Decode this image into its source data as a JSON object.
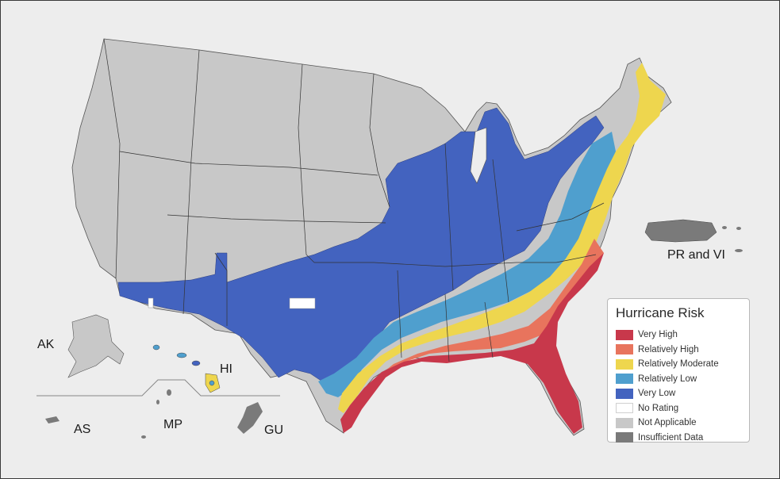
{
  "legend": {
    "title": "Hurricane Risk",
    "items": [
      {
        "label": "Very High",
        "color": "#c8384b"
      },
      {
        "label": "Relatively High",
        "color": "#e8745d"
      },
      {
        "label": "Relatively Moderate",
        "color": "#eed64e"
      },
      {
        "label": "Relatively Low",
        "color": "#4f9fce"
      },
      {
        "label": "Very Low",
        "color": "#4363bf"
      },
      {
        "label": "No Rating",
        "color": "#ffffff"
      },
      {
        "label": "Not Applicable",
        "color": "#c8c8c8"
      },
      {
        "label": "Insufficient Data",
        "color": "#7a7a7a"
      }
    ]
  },
  "territories": {
    "ak": "AK",
    "hi": "HI",
    "as": "AS",
    "mp": "MP",
    "gu": "GU",
    "pr_vi": "PR and VI"
  }
}
